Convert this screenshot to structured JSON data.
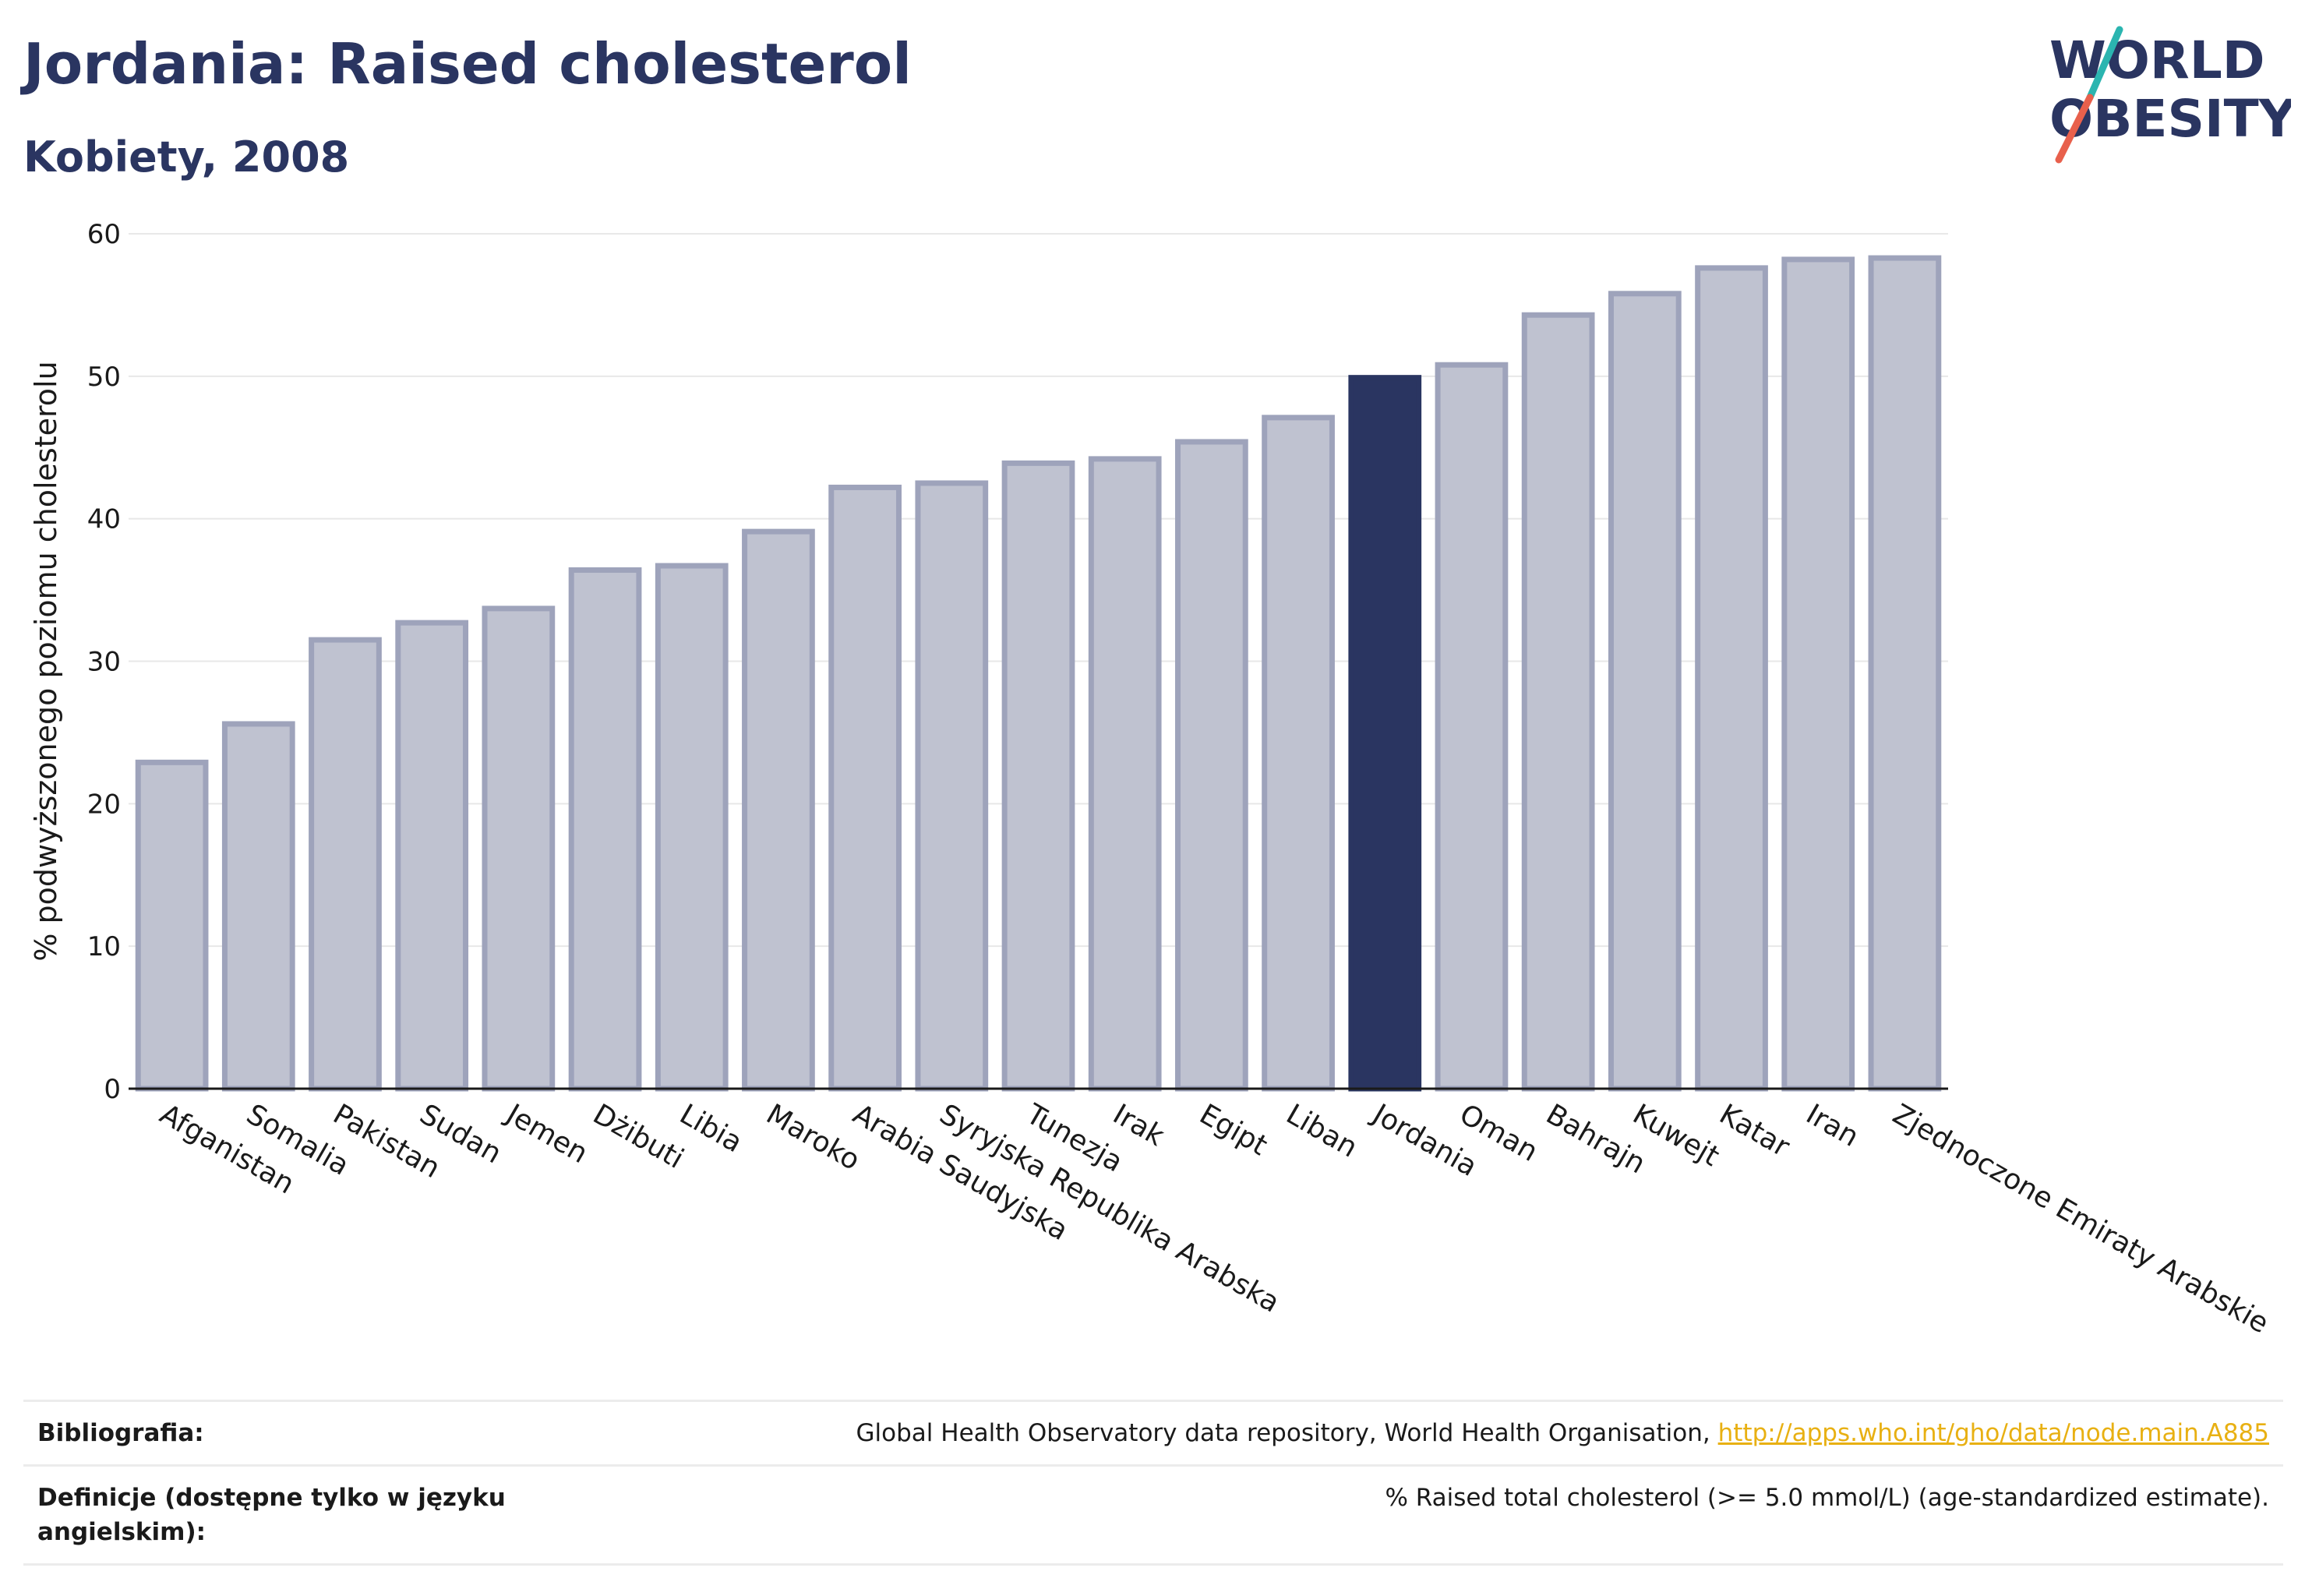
{
  "header": {
    "title": "Jordania: Raised cholesterol",
    "subtitle": "Kobiety, 2008"
  },
  "logo": {
    "line1": "WORLD",
    "line2": "OBESITY",
    "accent_teal": "#2bb5b0",
    "accent_coral": "#e8604c"
  },
  "colors": {
    "bar_default_fill": "#bfc2d0",
    "bar_default_stroke": "#9ea3bb",
    "bar_highlight": "#2a3561",
    "grid": "#e8e8e8",
    "link": "#e8b012"
  },
  "chart_data": {
    "type": "bar",
    "title": "Jordania: Raised cholesterol",
    "subtitle": "Kobiety, 2008",
    "xlabel": "",
    "ylabel": "% podwyższonego poziomu cholesterolu",
    "ylim": [
      0,
      60
    ],
    "yticks": [
      0,
      10,
      20,
      30,
      40,
      50,
      60
    ],
    "grid": true,
    "highlight": "Jordania",
    "categories": [
      "Afganistan",
      "Somalia",
      "Pakistan",
      "Sudan",
      "Jemen",
      "Dżibuti",
      "Libia",
      "Maroko",
      "Arabia Saudyjska",
      "Syryjska Republika Arabska",
      "Tunezja",
      "Irak",
      "Egipt",
      "Liban",
      "Jordania",
      "Oman",
      "Bahrajn",
      "Kuwejt",
      "Katar",
      "Iran",
      "Zjednoczone Emiraty Arabskie"
    ],
    "values": [
      22.9,
      25.6,
      31.5,
      32.7,
      33.7,
      36.4,
      36.7,
      39.1,
      42.2,
      42.5,
      43.9,
      44.2,
      45.4,
      47.1,
      49.9,
      50.8,
      54.3,
      55.8,
      57.6,
      58.2,
      58.3
    ]
  },
  "footer": {
    "bibliography_label": "Bibliografia:",
    "bibliography_text": "Global Health Observatory data repository, World Health Organisation,",
    "bibliography_link": "http://apps.who.int/gho/data/node.main.A885",
    "definition_label": "Definicje (dostępne tylko w języku angielskim):",
    "definition_text": "% Raised total cholesterol (>= 5.0 mmol/L) (age-standardized estimate)."
  }
}
